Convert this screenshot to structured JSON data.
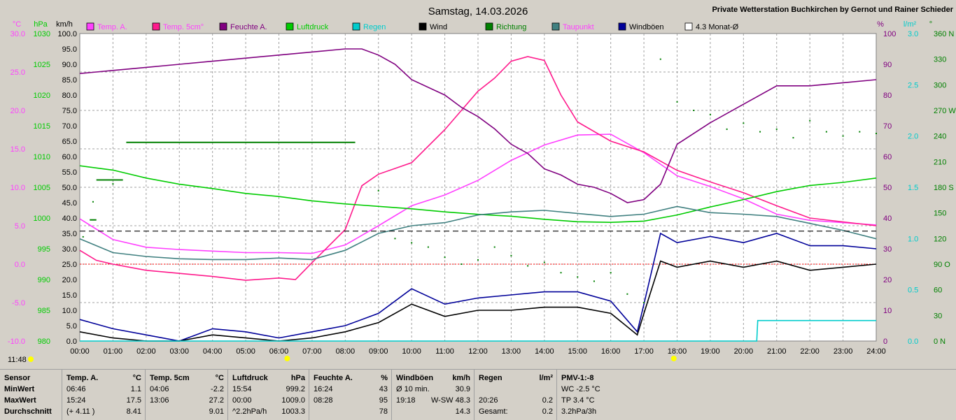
{
  "header": {
    "title": "Samstag, 14.03.2026",
    "station": "Private Wetterstation Buchkirchen by Gernot und Rainer Schieder",
    "time_marker": "11:48"
  },
  "legend": [
    {
      "label": "Temp. A.",
      "color": "#ff40ff"
    },
    {
      "label": "Temp. 5cm°",
      "color": "#ff1a8c"
    },
    {
      "label": "Feuchte A.",
      "color": "#800080"
    },
    {
      "label": "Luftdruck",
      "color": "#00cc00"
    },
    {
      "label": "Regen",
      "color": "#00cccc"
    },
    {
      "label": "Wind",
      "color": "#000000"
    },
    {
      "label": "Richtung",
      "color": "#008000"
    },
    {
      "label": "Taupunkt",
      "color": "#408080"
    },
    {
      "label": "Windböen",
      "color": "#000099"
    },
    {
      "label": "4.3 Monat-Ø",
      "color": "#ffffff"
    }
  ],
  "chart_data": {
    "type": "line",
    "x": [
      "00:00",
      "01:00",
      "02:00",
      "03:00",
      "04:00",
      "05:00",
      "06:00",
      "07:00",
      "08:00",
      "09:00",
      "10:00",
      "11:00",
      "12:00",
      "13:00",
      "14:00",
      "15:00",
      "16:00",
      "17:00",
      "18:00",
      "19:00",
      "20:00",
      "21:00",
      "22:00",
      "23:00",
      "24:00"
    ],
    "axes": {
      "celsius": {
        "unit": "°C",
        "ticks": [
          "30.0",
          "25.0",
          "20.0",
          "15.0",
          "10.0",
          "5.0",
          "0.0",
          "-5.0",
          "-10.0"
        ],
        "range": [
          -10,
          30
        ]
      },
      "hpa": {
        "unit": "hPa",
        "ticks": [
          "1030",
          "1025",
          "1020",
          "1015",
          "1010",
          "1005",
          "1000",
          "995",
          "990",
          "985",
          "980"
        ],
        "range": [
          980,
          1030
        ]
      },
      "kmh": {
        "unit": "km/h",
        "ticks": [
          "100.0",
          "95.0",
          "90.0",
          "85.0",
          "80.0",
          "75.0",
          "70.0",
          "65.0",
          "60.0",
          "55.0",
          "50.0",
          "45.0",
          "40.0",
          "35.0",
          "30.0",
          "25.0",
          "20.0",
          "15.0",
          "10.0",
          "5.0",
          "0.0"
        ],
        "range": [
          0,
          100
        ]
      },
      "percent": {
        "unit": "%",
        "ticks": [
          "100",
          "90",
          "80",
          "70",
          "60",
          "50",
          "40",
          "30",
          "20",
          "10",
          "0"
        ],
        "range": [
          0,
          100
        ]
      },
      "rain": {
        "unit": "l/m²",
        "ticks": [
          "3.0",
          "2.5",
          "2.0",
          "1.5",
          "1.0",
          "0.5",
          "0.0"
        ],
        "range": [
          0,
          3
        ]
      },
      "direction": {
        "unit": "°",
        "ticks": [
          "360 N",
          "330",
          "300",
          "270 W",
          "240",
          "210",
          "180 S",
          "150",
          "120",
          "90 O",
          "60",
          "30",
          "0 N"
        ],
        "range": [
          0,
          360
        ]
      }
    },
    "grid": true,
    "series": [
      {
        "name": "Temp. A.",
        "axis": "celsius",
        "color": "#ff40ff",
        "x": [
          0,
          1,
          2,
          3,
          4,
          5,
          6,
          7,
          8,
          9,
          10,
          11,
          12,
          13,
          14,
          15,
          16,
          17,
          18,
          19,
          20,
          21,
          22,
          23,
          24
        ],
        "values": [
          5.9,
          3.2,
          2.2,
          1.9,
          1.7,
          1.5,
          1.5,
          1.4,
          2.5,
          5.0,
          7.6,
          9.0,
          10.9,
          13.5,
          15.5,
          16.8,
          16.9,
          14.5,
          11.5,
          10.1,
          8.5,
          6.5,
          5.7,
          5.4,
          5.1
        ]
      },
      {
        "name": "Temp. 5cm°",
        "axis": "celsius",
        "color": "#ff1a8c",
        "x": [
          0,
          0.5,
          1,
          2,
          3,
          4,
          5,
          6,
          6.5,
          7,
          8,
          8.5,
          9,
          10,
          11,
          12,
          12.5,
          13,
          13.5,
          14,
          14.5,
          15,
          16,
          17,
          18,
          19,
          20,
          21,
          22,
          23,
          24
        ],
        "values": [
          1.8,
          0.5,
          0.0,
          -0.8,
          -1.2,
          -1.6,
          -2.1,
          -1.8,
          -2.0,
          0.2,
          4.5,
          10.2,
          11.7,
          13.2,
          17.5,
          22.5,
          24.2,
          26.4,
          27.0,
          26.5,
          22.0,
          18.5,
          16.0,
          14.6,
          12.2,
          10.7,
          9.3,
          7.6,
          6.0,
          5.5,
          5.0
        ]
      },
      {
        "name": "Feuchte A.",
        "axis": "percent",
        "color": "#800080",
        "x": [
          0,
          1,
          2,
          3,
          4,
          5,
          6,
          7,
          8,
          8.5,
          9,
          9.5,
          10,
          11,
          11.5,
          12,
          12.5,
          13,
          13.5,
          14,
          14.5,
          15,
          15.5,
          16,
          16.5,
          17,
          17.5,
          18,
          19,
          20,
          21,
          22,
          23,
          24
        ],
        "values": [
          87,
          88,
          89,
          90,
          91,
          92,
          93,
          94,
          95,
          95,
          93,
          90,
          85,
          80,
          76,
          73,
          69,
          64,
          61,
          56,
          54,
          51,
          50,
          48,
          45,
          46,
          51,
          64,
          71,
          77,
          83,
          83,
          84,
          85
        ]
      },
      {
        "name": "Luftdruck",
        "axis": "hpa",
        "color": "#00cc00",
        "x": [
          0,
          1,
          2,
          3,
          4,
          5,
          6,
          7,
          8,
          9,
          10,
          11,
          12,
          13,
          14,
          15,
          16,
          17,
          18,
          19,
          20,
          21,
          22,
          23,
          24
        ],
        "values": [
          1008.5,
          1007.8,
          1006.5,
          1005.5,
          1004.8,
          1004.0,
          1003.5,
          1002.8,
          1002.3,
          1001.9,
          1001.5,
          1001.0,
          1000.6,
          1000.3,
          999.8,
          999.4,
          999.3,
          999.5,
          1000.5,
          1001.8,
          1003.0,
          1004.3,
          1005.3,
          1005.8,
          1006.5
        ]
      },
      {
        "name": "Taupunkt",
        "axis": "celsius",
        "color": "#408080",
        "x": [
          0,
          1,
          2,
          3,
          4,
          5,
          6,
          7,
          8,
          9,
          10,
          11,
          12,
          13,
          14,
          15,
          16,
          17,
          18,
          19,
          20,
          21,
          22,
          23,
          24
        ],
        "values": [
          3.3,
          1.5,
          1.0,
          0.7,
          0.6,
          0.6,
          0.8,
          0.6,
          1.8,
          4.0,
          5.0,
          5.4,
          6.4,
          6.8,
          7.0,
          6.6,
          6.2,
          6.5,
          7.5,
          6.7,
          6.5,
          6.2,
          5.3,
          4.4,
          3.3
        ]
      },
      {
        "name": "Windböen",
        "axis": "kmh",
        "color": "#000099",
        "x": [
          0,
          1,
          2,
          3,
          4,
          5,
          6,
          7,
          8,
          9,
          10,
          11,
          12,
          13,
          14,
          15,
          16,
          16.8,
          17,
          17.5,
          18,
          19,
          20,
          21,
          22,
          23,
          24
        ],
        "values": [
          7,
          4,
          2,
          0,
          4,
          3,
          1,
          3,
          5,
          9,
          17,
          12,
          14,
          15,
          16,
          16,
          13,
          3,
          12,
          35,
          32,
          34,
          32,
          35,
          31,
          31,
          30
        ]
      },
      {
        "name": "Wind",
        "axis": "kmh",
        "color": "#000000",
        "x": [
          0,
          1,
          2,
          3,
          4,
          5,
          6,
          7,
          8,
          9,
          10,
          11,
          12,
          13,
          14,
          15,
          16,
          16.8,
          17,
          17.5,
          18,
          19,
          20,
          21,
          22,
          23,
          24
        ],
        "values": [
          3,
          1,
          0,
          0,
          2,
          1,
          0,
          1,
          3,
          6,
          12,
          8,
          10,
          10,
          11,
          11,
          9,
          2,
          9,
          26,
          24,
          26,
          24,
          26,
          23,
          24,
          25
        ]
      },
      {
        "name": "Regen",
        "axis": "rain",
        "color": "#00cccc",
        "x": [
          0,
          20.4,
          20.43,
          24
        ],
        "values": [
          0,
          0,
          0.2,
          0.2
        ]
      },
      {
        "name": "4.3 Monat-Ø",
        "axis": "celsius",
        "color": "#000000",
        "style": "dashed",
        "x": [
          0,
          24
        ],
        "values": [
          4.3,
          4.3
        ]
      }
    ],
    "richtung": {
      "name": "Richtung",
      "axis": "direction",
      "color": "#008000",
      "style": "dots",
      "x": [
        0.1,
        0.4,
        1,
        9,
        9.5,
        10,
        10.5,
        11,
        11.5,
        12,
        12.5,
        13,
        13.5,
        14,
        14.5,
        15,
        15.5,
        16,
        16.5,
        17,
        17.5,
        18,
        18.5,
        19,
        19.5,
        20,
        20.5,
        21,
        21.5,
        22,
        22.5,
        23,
        23.5,
        24
      ],
      "values": [
        122,
        163,
        184,
        176,
        120,
        115,
        110,
        98,
        90,
        95,
        110,
        100,
        88,
        92,
        80,
        75,
        70,
        80,
        55,
        45,
        330,
        280,
        270,
        265,
        248,
        255,
        245,
        248,
        238,
        258,
        245,
        240,
        245,
        243
      ]
    },
    "steps": [
      {
        "name": "Luftdruck Stunde",
        "axis": "hpa",
        "color": "#008000",
        "x1": 1.4,
        "x2": 8.3,
        "value": 1012.3
      },
      {
        "name": "Luftdruck Stunde",
        "axis": "hpa",
        "color": "#008000",
        "x1": 0.5,
        "x2": 1.3,
        "value": 1006.2
      },
      {
        "name": "Luftdruck Stunde",
        "axis": "hpa",
        "color": "#008000",
        "x1": 0.3,
        "x2": 0.5,
        "value": 999.7
      }
    ],
    "reference": {
      "axis": "celsius",
      "value": 0,
      "color": "#ff0000"
    }
  },
  "stats": {
    "columns": [
      {
        "rows": [
          "Sensor",
          "MinWert",
          "MaxWert",
          "Durchschnitt"
        ]
      },
      {
        "rows": [
          "Temp. A.",
          "06:46",
          "15:24",
          "(+ 4.11 )"
        ],
        "unit": "°C",
        "values": [
          "",
          "1.1",
          "17.5",
          "8.41"
        ]
      },
      {
        "rows": [
          "Temp. 5cm",
          "04:06",
          "13:06",
          ""
        ],
        "unit": "°C",
        "values": [
          "",
          "-2.2",
          "27.2",
          "9.01"
        ]
      },
      {
        "rows": [
          "Luftdruck",
          "15:54",
          "00:00",
          "^2.2hPa/h"
        ],
        "unit": "hPa",
        "values": [
          "",
          "999.2",
          "1009.0",
          "1003.3"
        ]
      },
      {
        "rows": [
          "Feuchte A.",
          "16:24",
          "08:28",
          ""
        ],
        "unit": "%",
        "values": [
          "",
          "43",
          "95",
          "78"
        ]
      },
      {
        "rows": [
          "Windböen",
          "Ø 10 min.",
          "19:18",
          ""
        ],
        "unit": "km/h",
        "values": [
          "",
          "30.9",
          "W-SW 48.3",
          "14.3"
        ]
      },
      {
        "rows": [
          "Regen",
          "",
          "20:26",
          "Gesamt:"
        ],
        "unit": "l/m²",
        "values": [
          "",
          "",
          "0.2",
          "0.2"
        ]
      },
      {
        "rows": [
          "PMV-1:-8",
          "WC -2.5 °C",
          "TP 3.4 °C",
          "3.2hPa/3h"
        ]
      }
    ]
  }
}
